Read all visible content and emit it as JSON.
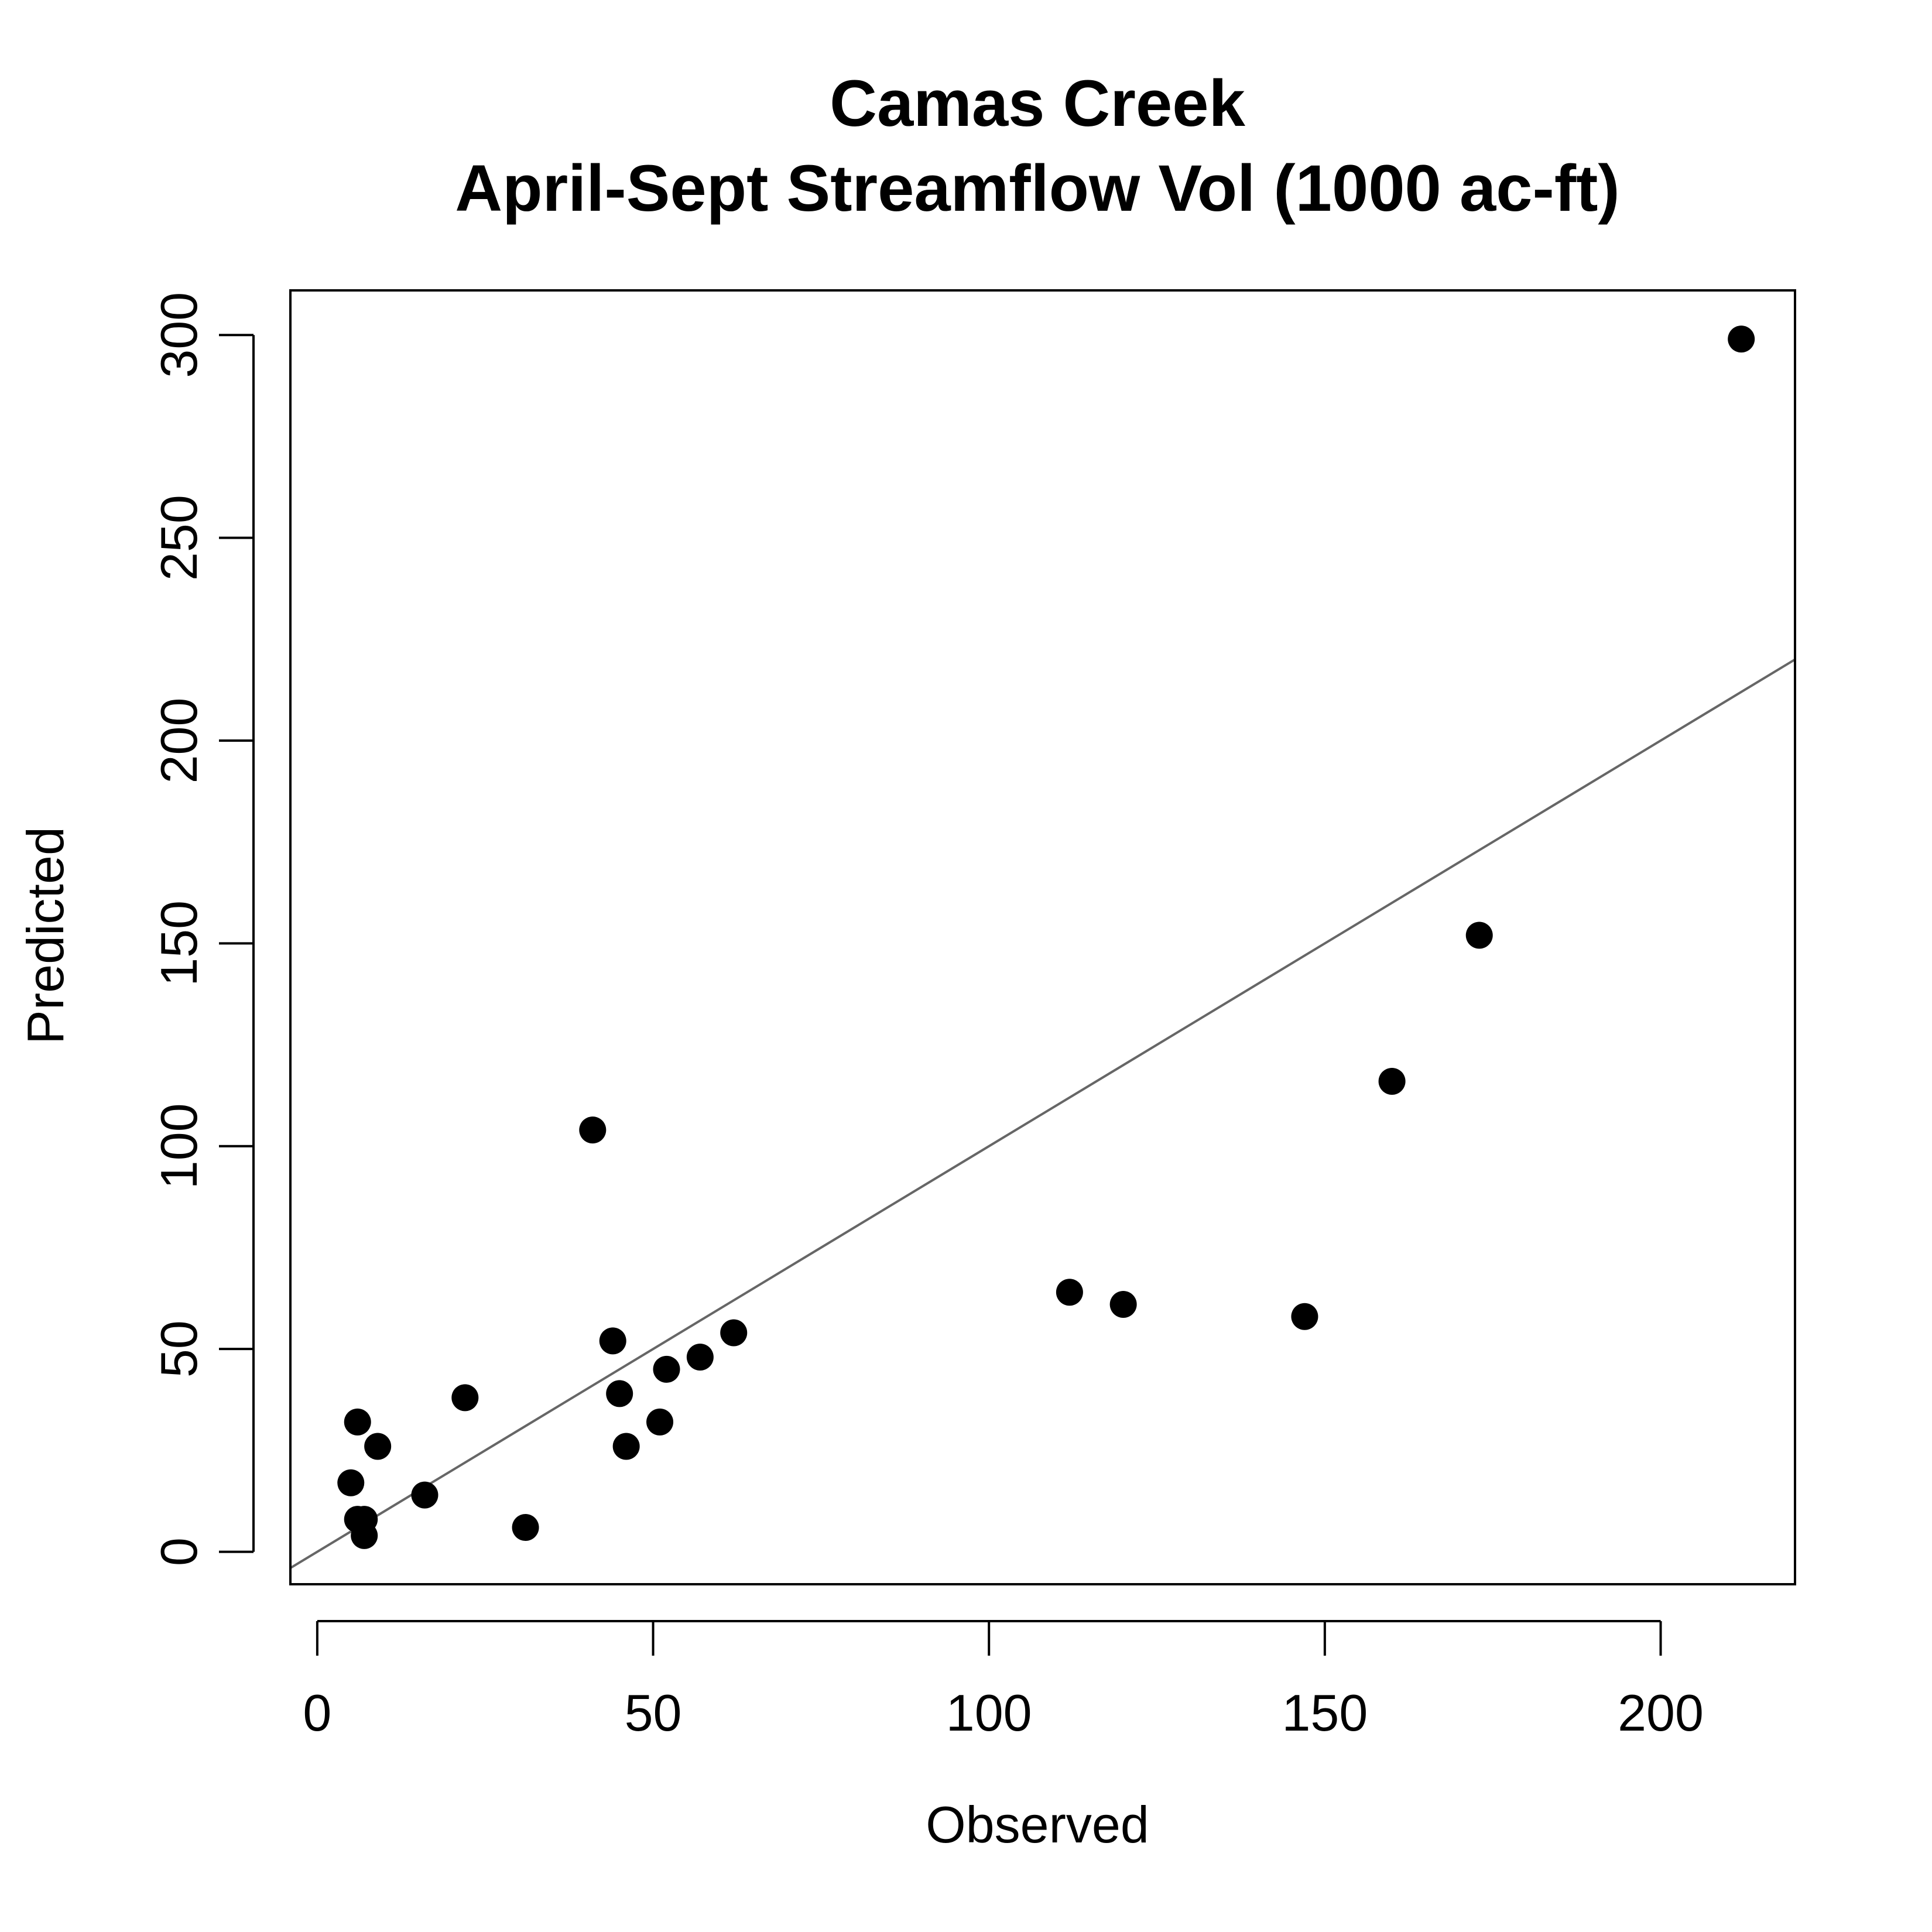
{
  "chart_data": {
    "type": "scatter",
    "title": [
      "Camas Creek",
      "April-Sept Streamflow Vol (1000 ac-ft)"
    ],
    "xlabel": "Observed",
    "ylabel": "Predicted",
    "xlim": [
      -4,
      220
    ],
    "ylim": [
      -8,
      311
    ],
    "x_ticks": [
      0,
      50,
      100,
      150,
      200
    ],
    "y_ticks": [
      0,
      50,
      100,
      150,
      200,
      250,
      300
    ],
    "grid": false,
    "reference_line": {
      "slope": 1,
      "intercept": 0,
      "color": "#666666"
    },
    "point_color": "#000000",
    "points": [
      {
        "x": 212,
        "y": 299
      },
      {
        "x": 173,
        "y": 152
      },
      {
        "x": 160,
        "y": 116
      },
      {
        "x": 112,
        "y": 64
      },
      {
        "x": 120,
        "y": 61
      },
      {
        "x": 147,
        "y": 58
      },
      {
        "x": 41,
        "y": 104
      },
      {
        "x": 44,
        "y": 52
      },
      {
        "x": 62,
        "y": 54
      },
      {
        "x": 57,
        "y": 48
      },
      {
        "x": 52,
        "y": 45
      },
      {
        "x": 45,
        "y": 39
      },
      {
        "x": 51,
        "y": 32
      },
      {
        "x": 46,
        "y": 26
      },
      {
        "x": 22,
        "y": 38
      },
      {
        "x": 6,
        "y": 32
      },
      {
        "x": 9,
        "y": 26
      },
      {
        "x": 5,
        "y": 17
      },
      {
        "x": 16,
        "y": 14
      },
      {
        "x": 31,
        "y": 6
      },
      {
        "x": 6,
        "y": 8
      },
      {
        "x": 7,
        "y": 8
      },
      {
        "x": 7,
        "y": 4
      }
    ]
  }
}
